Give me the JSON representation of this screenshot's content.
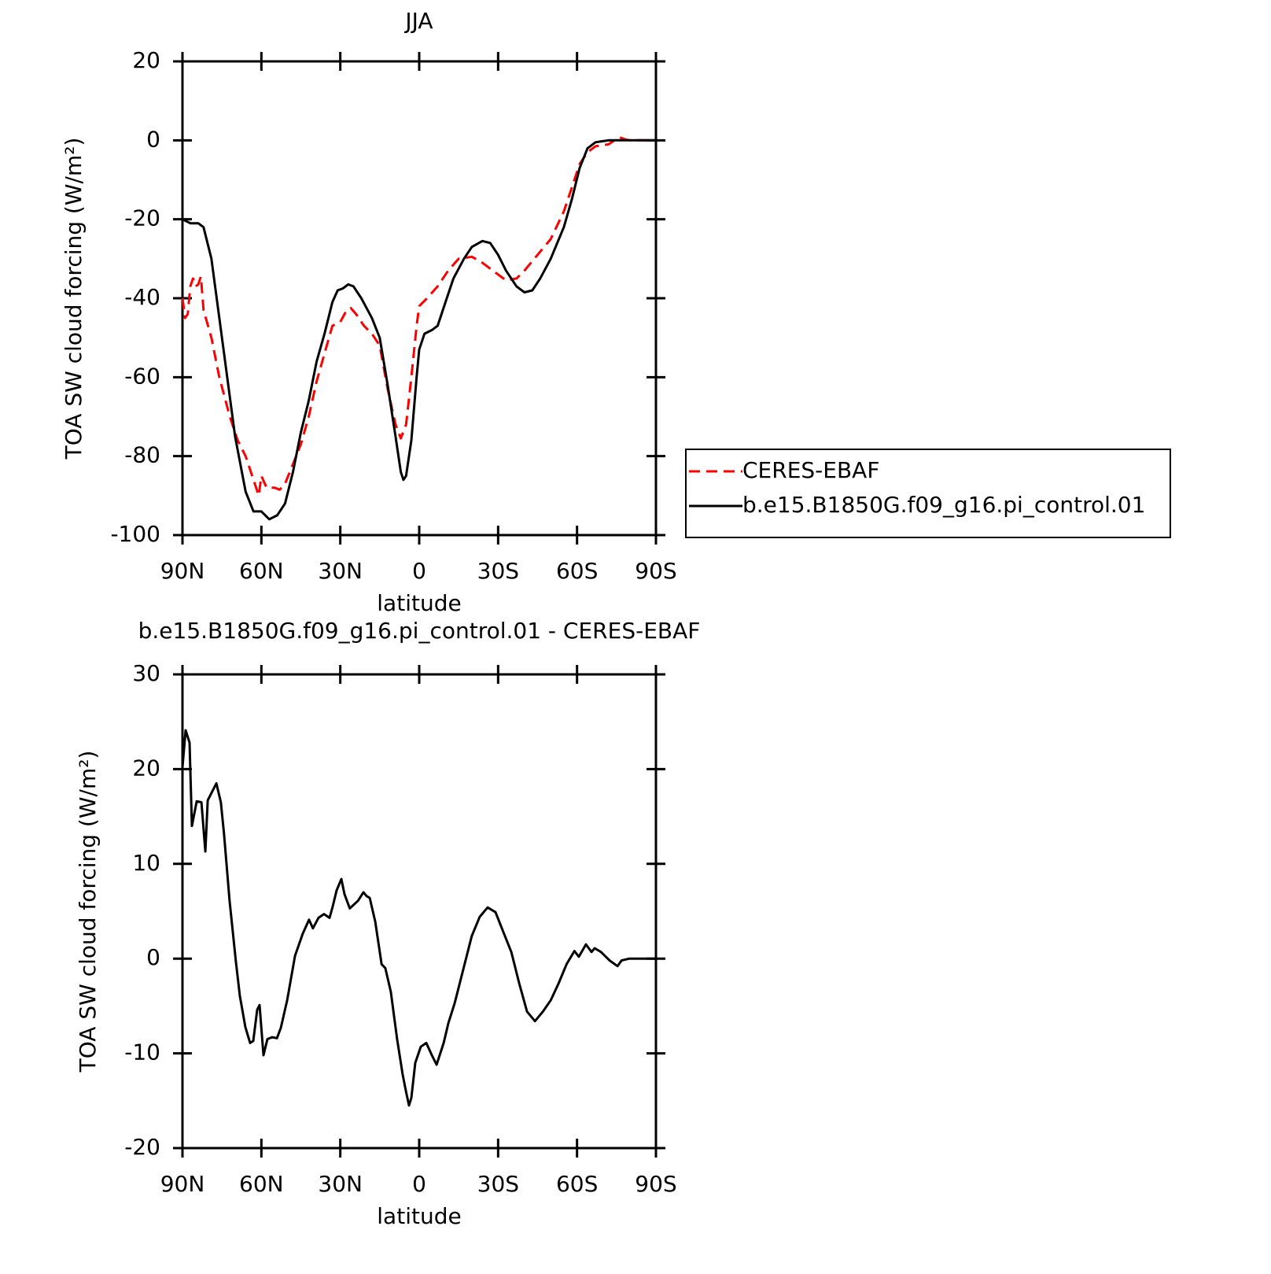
{
  "chart_data": [
    {
      "type": "line",
      "title": "JJA",
      "xlabel": "latitude",
      "ylabel": "TOA SW cloud forcing (W/m²)",
      "xlim": [
        90,
        -90
      ],
      "xticks": [
        {
          "value": 90,
          "label": "90N"
        },
        {
          "value": 60,
          "label": "60N"
        },
        {
          "value": 30,
          "label": "30N"
        },
        0,
        {
          "value": -30,
          "label": "30S"
        },
        {
          "value": -60,
          "label": "60S"
        },
        {
          "value": -90,
          "label": "90S"
        }
      ],
      "ylim": [
        -100,
        20
      ],
      "yticks": [
        -100,
        -80,
        -60,
        -40,
        -20,
        0,
        20
      ],
      "legend": "outside right",
      "series": [
        {
          "name": "CERES-EBAF",
          "color": "#ff0000",
          "dash": "dashed",
          "x": [
            90,
            89,
            88,
            87,
            86,
            85,
            84,
            83,
            82,
            79,
            76,
            72,
            69,
            66,
            63,
            61,
            60,
            58,
            55,
            53,
            51,
            48,
            45,
            42,
            39,
            36,
            33,
            30,
            28,
            26,
            24,
            21,
            18,
            15,
            12,
            9,
            7,
            5,
            3,
            1,
            0,
            -3,
            -7,
            -11,
            -15,
            -20,
            -24,
            -28,
            -33,
            -37,
            -40,
            -45,
            -50,
            -55,
            -58,
            -61,
            -64,
            -67,
            -72,
            -76,
            -78,
            -80,
            -90
          ],
          "values": [
            -40,
            -45,
            -44,
            -37,
            -35,
            -37,
            -36.5,
            -34.5,
            -43,
            -50,
            -60,
            -70,
            -76,
            -80,
            -86,
            -90,
            -85,
            -88,
            -88,
            -88.5,
            -87,
            -82,
            -77,
            -70,
            -61,
            -54,
            -47,
            -46,
            -43.5,
            -42.5,
            -44,
            -47,
            -49,
            -52,
            -63,
            -72,
            -75.5,
            -72,
            -60,
            -47,
            -42,
            -40,
            -37,
            -33,
            -30,
            -29.5,
            -31,
            -33,
            -35.5,
            -35,
            -33,
            -29,
            -25,
            -18,
            -12,
            -6,
            -3,
            -1.5,
            -1,
            0.8,
            0.3,
            0,
            0
          ]
        },
        {
          "name": "b.e15.B1850G.f09_g16.pi_control.01",
          "color": "#000000",
          "dash": "solid",
          "x": [
            90,
            87,
            84,
            82,
            79,
            75,
            70,
            66,
            63,
            60,
            57,
            54,
            51,
            48,
            45,
            42,
            39,
            36,
            33,
            31,
            29,
            27,
            25,
            22,
            18,
            15,
            12,
            9,
            7,
            6,
            5,
            3,
            1,
            0,
            -2,
            -5,
            -7,
            -10,
            -13,
            -17,
            -20,
            -24,
            -27,
            -30,
            -33,
            -37,
            -40,
            -43,
            -46,
            -50,
            -55,
            -58,
            -61,
            -64,
            -67,
            -72,
            -90
          ],
          "values": [
            -20,
            -21,
            -21,
            -22,
            -30,
            -50,
            -75,
            -89,
            -94,
            -94,
            -96,
            -95,
            -92,
            -84,
            -74,
            -66,
            -56,
            -49,
            -41,
            -38,
            -37.5,
            -36.5,
            -37,
            -40,
            -45,
            -50,
            -62,
            -75,
            -84,
            -86,
            -85,
            -76,
            -60,
            -53,
            -49,
            -48,
            -47,
            -41,
            -35,
            -30,
            -27,
            -25.5,
            -26,
            -29,
            -33,
            -37,
            -38.5,
            -38,
            -35,
            -30,
            -22,
            -15,
            -7,
            -2,
            -0.5,
            0,
            0
          ]
        }
      ]
    },
    {
      "type": "line",
      "title": "b.e15.B1850G.f09_g16.pi_control.01 - CERES-EBAF",
      "xlabel": "latitude",
      "ylabel": "TOA SW cloud forcing (W/m²)",
      "xlim": [
        90,
        -90
      ],
      "xticks": [
        {
          "value": 90,
          "label": "90N"
        },
        {
          "value": 60,
          "label": "60N"
        },
        {
          "value": 30,
          "label": "30N"
        },
        0,
        {
          "value": -30,
          "label": "30S"
        },
        {
          "value": -60,
          "label": "60S"
        },
        {
          "value": -90,
          "label": "90S"
        }
      ],
      "ylim": [
        -20,
        30
      ],
      "yticks": [
        -20,
        -10,
        0,
        10,
        20,
        30
      ],
      "series": [
        {
          "color": "#000000",
          "dash": "solid",
          "x": [
            90,
            88.8,
            87.3,
            86.4,
            84.6,
            82.8,
            81.3,
            80.4,
            77.1,
            75.4,
            74.2,
            72.1,
            69.7,
            68.2,
            66.1,
            64.3,
            63.1,
            61.6,
            60.7,
            59.2,
            57.7,
            55.9,
            54.1,
            52.6,
            50.2,
            47.2,
            44.3,
            41.9,
            40.4,
            38.3,
            36.2,
            34.1,
            32.9,
            31.4,
            29.6,
            28.4,
            26.4,
            23.3,
            21.2,
            20,
            18.8,
            16.7,
            14.3,
            12.9,
            10.8,
            8.4,
            6.3,
            5.1,
            3.9,
            3,
            1.5,
            -0.6,
            -2.7,
            -4.8,
            -6.6,
            -9.3,
            -11.1,
            -13.5,
            -16.5,
            -20,
            -23,
            -26,
            -29,
            -32,
            -35,
            -38,
            -41,
            -44,
            -47,
            -50,
            -53,
            -56,
            -59,
            -60.7,
            -63.4,
            -65.5,
            -66.7,
            -69.1,
            -72.4,
            -75.4,
            -76.9,
            -79.9,
            -90
          ],
          "values": [
            20.2,
            24.1,
            22.8,
            14,
            16.6,
            16.5,
            11.3,
            16.7,
            18.5,
            16.5,
            13.2,
            6.1,
            -0.3,
            -3.9,
            -7.2,
            -8.9,
            -8.7,
            -5.4,
            -4.9,
            -10.2,
            -8.5,
            -8.3,
            -8.4,
            -7.3,
            -4.4,
            0.3,
            2.6,
            4.1,
            3.2,
            4.3,
            4.7,
            4.3,
            5.5,
            7.2,
            8.4,
            6.8,
            5.3,
            6.1,
            7.0,
            6.6,
            6.4,
            3.9,
            -0.6,
            -1.0,
            -3.5,
            -8.5,
            -12.2,
            -13.9,
            -15.5,
            -14.7,
            -11,
            -9.3,
            -8.9,
            -10.2,
            -11.2,
            -8.9,
            -6.8,
            -4.7,
            -1.4,
            2.4,
            4.4,
            5.4,
            4.9,
            2.8,
            0.7,
            -2.6,
            -5.6,
            -6.6,
            -5.6,
            -4.4,
            -2.6,
            -0.6,
            0.8,
            0.2,
            1.5,
            0.7,
            1.1,
            0.7,
            -0.2,
            -0.8,
            -0.2,
            0,
            0
          ]
        }
      ]
    }
  ]
}
